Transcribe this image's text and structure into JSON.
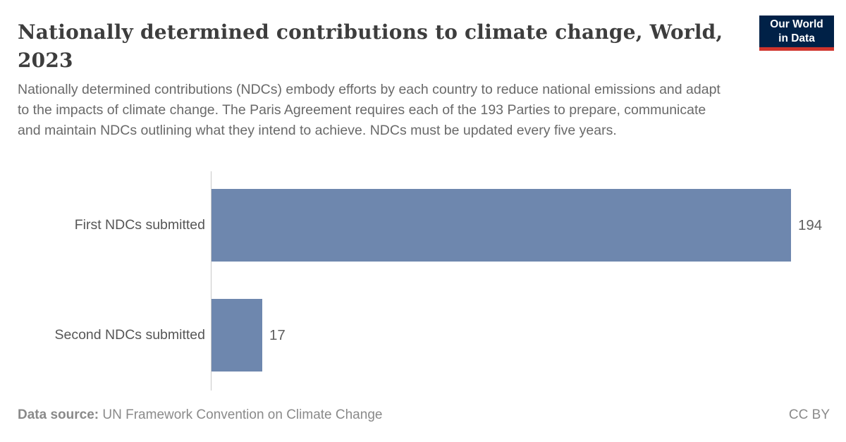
{
  "header": {
    "title_lines": [
      "Nationally determined contributions to climate change, World,",
      "2023"
    ],
    "subtitle": "Nationally determined contributions (NDCs) embody efforts by each country to reduce national emissions and adapt to the impacts of climate change. The Paris Agreement requires each of the 193 Parties to prepare, communicate and maintain NDCs outlining what they intend to achieve. NDCs must be updated every five years."
  },
  "logo": {
    "line1": "Our World",
    "line2": "in Data",
    "bg_color": "#002147",
    "underline_color": "#d0342c",
    "text_color": "#ffffff"
  },
  "chart_data": {
    "type": "bar",
    "orientation": "horizontal",
    "title": "Nationally determined contributions to climate change, World, 2023",
    "categories": [
      "First NDCs submitted",
      "Second NDCs submitted"
    ],
    "values": [
      194,
      17
    ],
    "bar_color": "#6e87ae",
    "xlim": [
      0,
      194
    ],
    "grid": false,
    "legend": "none",
    "value_labels_shown": true
  },
  "footer": {
    "source_label": "Data source:",
    "source_text": "UN Framework Convention on Climate Change",
    "license": "CC BY"
  }
}
